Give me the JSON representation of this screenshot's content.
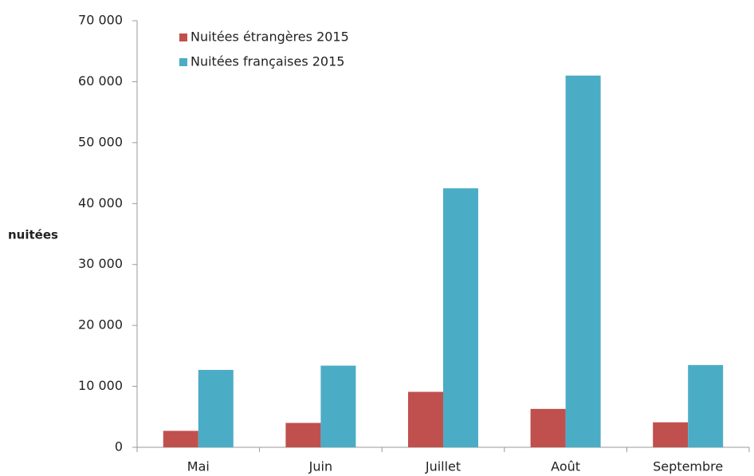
{
  "chart_data": {
    "type": "bar",
    "ylabel": "nuitées",
    "categories": [
      "Mai",
      "Juin",
      "Juillet",
      "Août",
      "Septembre"
    ],
    "series": [
      {
        "name": "Nuitées étrangères 2015",
        "color": "#c0504d",
        "values": [
          2700,
          4000,
          9100,
          6300,
          4100
        ]
      },
      {
        "name": "Nuitées françaises 2015",
        "color": "#4bacc6",
        "values": [
          12700,
          13400,
          42500,
          61000,
          13500
        ]
      }
    ],
    "ylim": [
      0,
      70000
    ],
    "yticks": [
      0,
      {
        "value": 10000,
        "label": "10 000"
      },
      {
        "value": 20000,
        "label": "20 000"
      },
      {
        "value": 30000,
        "label": "30 000"
      },
      {
        "value": 40000,
        "label": "40 000"
      },
      {
        "value": 50000,
        "label": "50 000"
      },
      {
        "value": 60000,
        "label": "60 000"
      },
      {
        "value": 70000,
        "label": "70 000"
      }
    ],
    "grid": false,
    "legend": "upper left"
  }
}
